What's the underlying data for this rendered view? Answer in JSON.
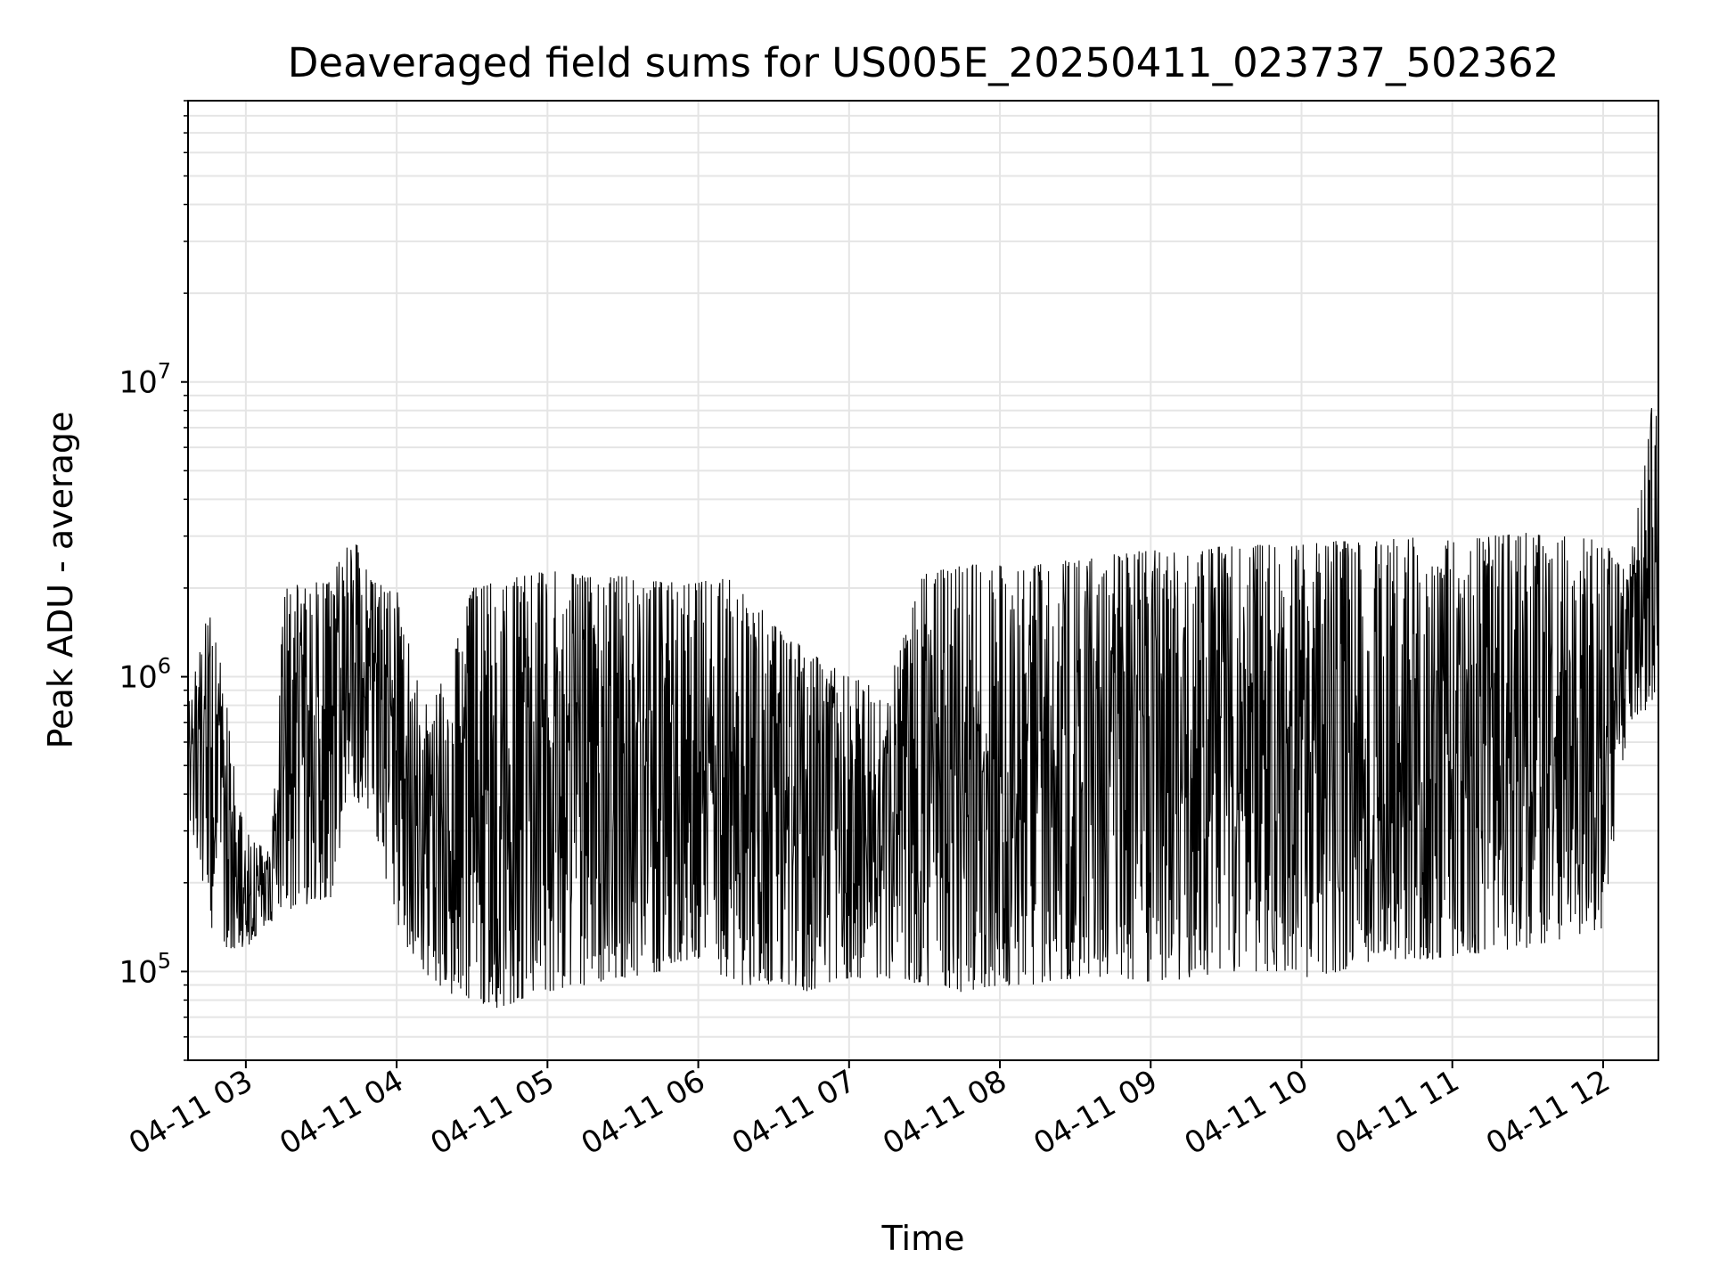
{
  "chart_data": {
    "type": "line",
    "title": "Deaveraged field sums for US005E_20250411_023737_502362",
    "xlabel": "Time",
    "ylabel": "Peak ADU - average",
    "yscale": "log",
    "ylim": [
      50000,
      90000000
    ],
    "xlim": [
      "2025-04-11 02:37",
      "2025-04-11 12:22"
    ],
    "grid": true,
    "colors": {
      "line": "#000000",
      "grid": "#e5e5e5",
      "axes": "#000000"
    },
    "x_ticks": [
      "04-11 03",
      "04-11 04",
      "04-11 05",
      "04-11 06",
      "04-11 07",
      "04-11 08",
      "04-11 09",
      "04-11 10",
      "04-11 11",
      "04-11 12"
    ],
    "y_ticks": [
      {
        "value": 100000,
        "label": "10^5"
      },
      {
        "value": 1000000,
        "label": "10^6"
      },
      {
        "value": 10000000,
        "label": "10^7"
      }
    ],
    "series": [
      {
        "x": [
          "2025-04-11 02:37",
          "2025-04-11 02:45",
          "2025-04-11 02:50",
          "2025-04-11 03:00",
          "2025-04-11 03:10",
          "2025-04-11 03:15",
          "2025-04-11 03:25",
          "2025-04-11 03:35",
          "2025-04-11 03:40",
          "2025-04-11 03:50",
          "2025-04-11 04:00",
          "2025-04-11 04:10",
          "2025-04-11 04:20",
          "2025-04-11 04:30",
          "2025-04-11 04:40",
          "2025-04-11 04:50",
          "2025-04-11 05:00",
          "2025-04-11 05:15",
          "2025-04-11 05:30",
          "2025-04-11 05:45",
          "2025-04-11 06:00",
          "2025-04-11 06:15",
          "2025-04-11 06:30",
          "2025-04-11 06:45",
          "2025-04-11 07:00",
          "2025-04-11 07:15",
          "2025-04-11 07:30",
          "2025-04-11 07:45",
          "2025-04-11 08:00",
          "2025-04-11 08:15",
          "2025-04-11 08:30",
          "2025-04-11 08:45",
          "2025-04-11 09:00",
          "2025-04-11 09:15",
          "2025-04-11 09:30",
          "2025-04-11 09:45",
          "2025-04-11 10:00",
          "2025-04-11 10:15",
          "2025-04-11 10:30",
          "2025-04-11 10:45",
          "2025-04-11 11:00",
          "2025-04-11 11:15",
          "2025-04-11 11:30",
          "2025-04-11 11:45",
          "2025-04-11 12:00",
          "2025-04-11 12:10",
          "2025-04-11 12:20",
          "2025-04-11 12:22"
        ],
        "low": [
          350000,
          150000,
          120000,
          120000,
          140000,
          160000,
          170000,
          180000,
          400000,
          350000,
          140000,
          100000,
          85000,
          80000,
          75000,
          80000,
          85000,
          90000,
          95000,
          100000,
          110000,
          90000,
          90000,
          85000,
          95000,
          95000,
          90000,
          85000,
          90000,
          90000,
          95000,
          95000,
          90000,
          95000,
          100000,
          100000,
          95000,
          100000,
          110000,
          110000,
          110000,
          115000,
          120000,
          130000,
          140000,
          700000,
          800000,
          900000
        ],
        "high": [
          800000,
          1700000,
          1100000,
          300000,
          250000,
          2000000,
          2100000,
          2100000,
          3500000,
          2100000,
          2000000,
          900000,
          1000000,
          2000000,
          2100000,
          2200000,
          2300000,
          2200000,
          2200000,
          2100000,
          2100000,
          2200000,
          1500000,
          1200000,
          1000000,
          900000,
          2300000,
          2400000,
          2400000,
          2400000,
          2500000,
          2600000,
          2700000,
          2600000,
          2800000,
          2800000,
          2800000,
          2900000,
          2900000,
          3000000,
          2900000,
          3000000,
          3100000,
          3000000,
          2900000,
          2200000,
          9000000,
          9000000
        ]
      }
    ]
  }
}
